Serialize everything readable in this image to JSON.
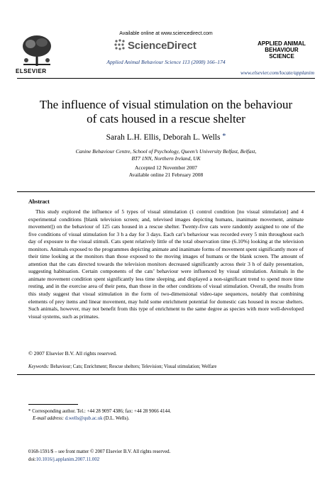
{
  "header": {
    "availability": "Available online at www.sciencedirect.com",
    "sciencedirect_logo_text": "ScienceDirect",
    "journal_citation": "Applied Animal Behaviour Science 113 (2008) 166–174",
    "journal_url": "www.elsevier.com/locate/applanim",
    "publisher": "ELSEVIER",
    "journal_logo_lines": [
      "APPLIED ANIMAL",
      "BEHAVIOUR",
      "SCIENCE"
    ]
  },
  "article": {
    "title_line1": "The influence of visual stimulation on the behaviour",
    "title_line2": "of cats housed in a rescue shelter",
    "authors": "Sarah L.H. Ellis, Deborah L. Wells",
    "author_mark": "*",
    "affiliation_line1": "Canine Behaviour Centre, School of Psychology, Queen’s University Belfast, Belfast,",
    "affiliation_line2": "BT7 1NN, Northern Ireland, UK",
    "accepted": "Accepted 12 November 2007",
    "available_online": "Available online 21 February 2008"
  },
  "abstract": {
    "heading": "Abstract",
    "body": "This study explored the influence of 5 types of visual stimulation (1 control condition [no visual stimulation] and 4 experimental conditions [blank television screen; and, televised images depicting humans, inanimate movement, animate movement]) on the behaviour of 125 cats housed in a rescue shelter. Twenty-five cats were randomly assigned to one of the five conditions of visual stimulation for 3 h a day for 3 days. Each cat’s behaviour was recorded every 5 min throughout each day of exposure to the visual stimuli. Cats spent relatively little of the total observation time (6.10%) looking at the television monitors. Animals exposed to the programmes depicting animate and inanimate forms of movement spent significantly more of their time looking at the monitors than those exposed to the moving images of humans or the blank screen. The amount of attention that the cats directed towards the television monitors decreased significantly across their 3 h of daily presentation, suggesting habituation. Certain components of the cats’ behaviour were influenced by visual stimulation. Animals in the animate movement condition spent significantly less time sleeping, and displayed a non-significant trend to spend more time resting, and in the exercise area of their pens, than those in the other conditions of visual stimulation. Overall, the results from this study suggest that visual stimulation in the form of two-dimensional video-tape sequences, notably that combining elements of prey items and linear movement, may hold some enrichment potential for domestic cats housed in rescue shelters. Such animals, however, may not benefit from this type of enrichment to the same degree as species with more well-developed visual systems, such as primates.",
    "copyright": "© 2007 Elsevier B.V. All rights reserved."
  },
  "keywords": {
    "label": "Keywords:",
    "text": "Behaviour; Cats; Enrichment; Rescue shelters; Television; Visual stimulation; Welfare"
  },
  "footnote": {
    "marker": "*",
    "corresponding": "Corresponding author. Tel.: +44 28 9097 4386; fax: +44 28 9066 4144.",
    "email_label": "E-mail address:",
    "email": "d.wells@qub.ac.uk",
    "email_suffix": "(D.L. Wells)."
  },
  "bottom": {
    "issn": "0168-1591/$ – see front matter © 2007 Elsevier B.V. All rights reserved.",
    "doi_prefix": "doi:",
    "doi": "10.1016/j.applanim.2007.11.002"
  },
  "colors": {
    "link": "#1a3a7a"
  }
}
